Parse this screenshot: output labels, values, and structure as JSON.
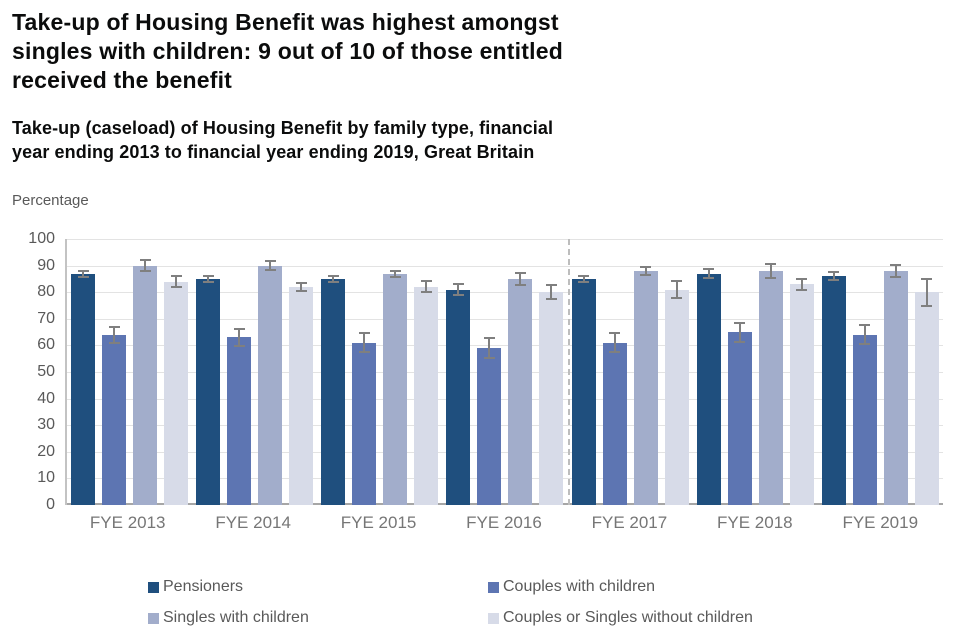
{
  "title_lines": [
    "Take-up of Housing Benefit was highest amongst",
    "singles with children: 9 out of 10 of those entitled",
    "received the benefit"
  ],
  "subtitle_lines": [
    "Take-up (caseload) of Housing Benefit by family type, financial",
    "year ending 2013 to financial year ending 2019, Great Britain"
  ],
  "axis_unit_label": "Percentage",
  "colors": {
    "pensioners": "#1f4f7e",
    "couples_with_children": "#5d75b2",
    "singles_with_children": "#a2adcb",
    "without_children": "#d7dbe8",
    "error_bar": "#7f7f7f",
    "gridline": "#e3e3e3",
    "axis_text": "#595959"
  },
  "chart_data": {
    "type": "bar",
    "title": "Take-up (caseload) of Housing Benefit by family type, financial year ending 2013 to financial year ending 2019, Great Britain",
    "xlabel": "",
    "ylabel": "Percentage",
    "ylim": [
      0,
      100
    ],
    "ytick_step": 10,
    "grid": true,
    "legend_position": "bottom",
    "divider_after_category_index": 3,
    "categories": [
      "FYE 2013",
      "FYE 2014",
      "FYE 2015",
      "FYE 2016",
      "FYE 2017",
      "FYE 2018",
      "FYE 2019"
    ],
    "series": [
      {
        "name": "Pensioners",
        "color": "#1f4f7e",
        "values": [
          87,
          85,
          85,
          81,
          85,
          87,
          86
        ],
        "error_plus_minus": [
          1.5,
          1.5,
          1.5,
          2.5,
          1.5,
          2,
          2
        ]
      },
      {
        "name": "Couples with children",
        "color": "#5d75b2",
        "values": [
          64,
          63,
          61,
          59,
          61,
          65,
          64
        ],
        "error_plus_minus": [
          3.5,
          3.5,
          4,
          4,
          4,
          4,
          4
        ]
      },
      {
        "name": "Singles with children",
        "color": "#a2adcb",
        "values": [
          90,
          90,
          87,
          85,
          88,
          88,
          88
        ],
        "error_plus_minus": [
          2.5,
          2,
          1.5,
          2.5,
          2,
          3,
          2.5
        ]
      },
      {
        "name": "Couples or Singles without children",
        "color": "#d7dbe8",
        "values": [
          84,
          82,
          82,
          80,
          81,
          83,
          80
        ],
        "error_plus_minus": [
          2.5,
          2,
          2.5,
          3,
          3.5,
          2.5,
          5.5
        ]
      }
    ]
  }
}
